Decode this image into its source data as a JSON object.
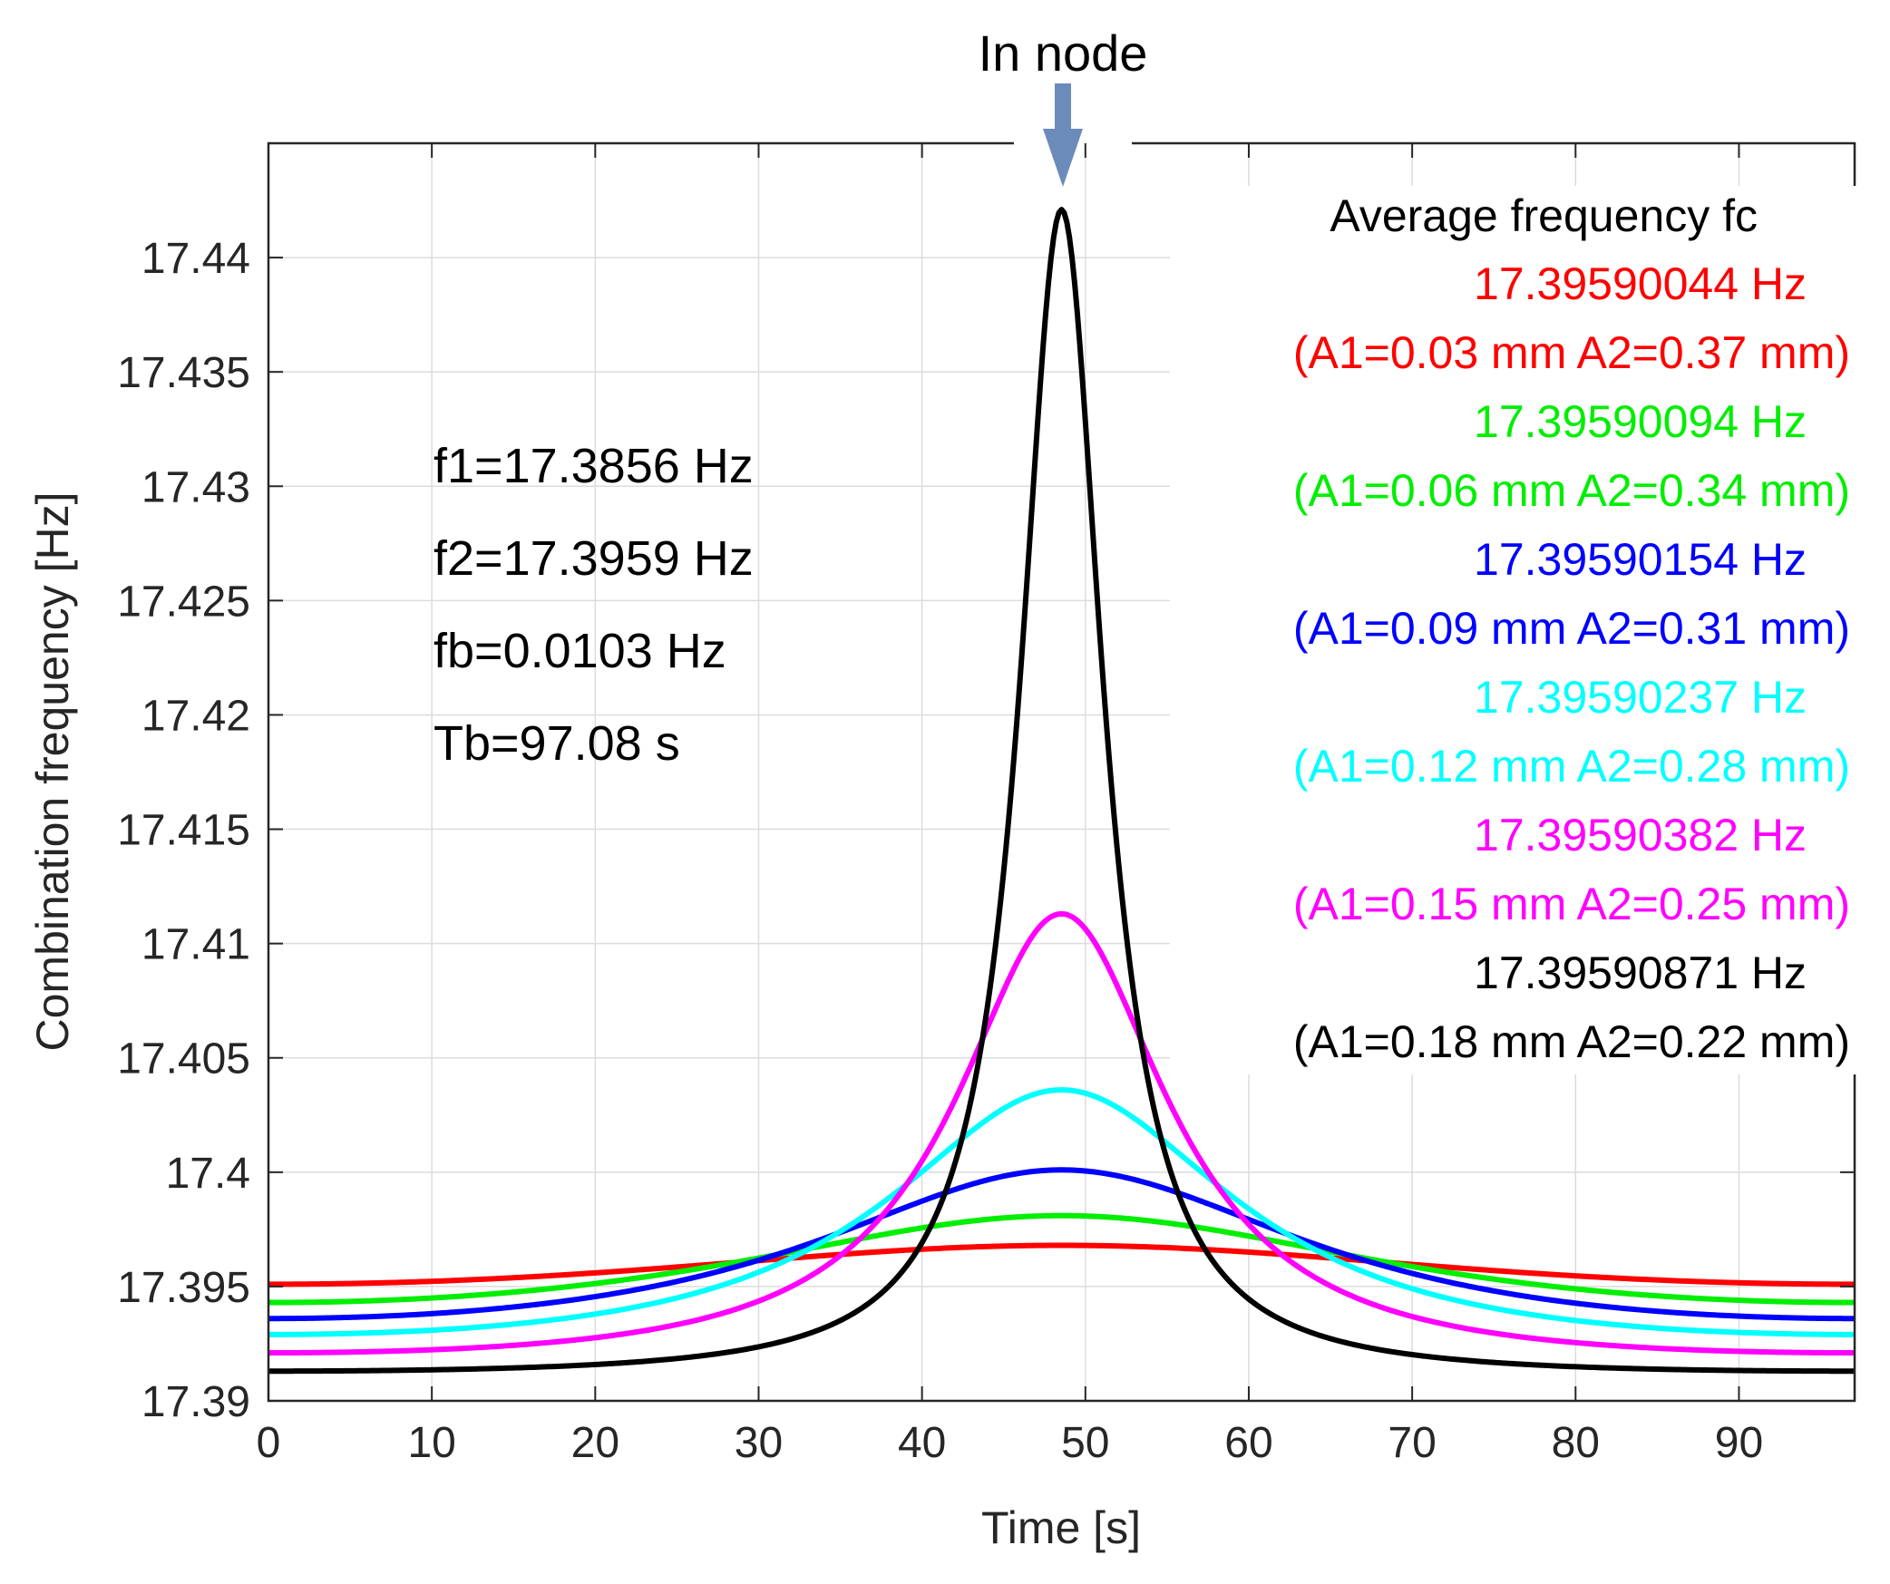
{
  "chart_data": {
    "type": "line",
    "title": "",
    "annotation_top": "In node",
    "xlabel": "Time [s]",
    "ylabel": "Combination frequency [Hz]",
    "xlim": [
      0,
      97.08
    ],
    "ylim": [
      17.39,
      17.445
    ],
    "xticks": [
      0,
      10,
      20,
      30,
      40,
      50,
      60,
      70,
      80,
      90
    ],
    "xtick_labels": [
      "0",
      "10",
      "20",
      "30",
      "40",
      "50",
      "60",
      "70",
      "80",
      "90"
    ],
    "yticks": [
      17.39,
      17.395,
      17.4,
      17.405,
      17.41,
      17.415,
      17.42,
      17.425,
      17.43,
      17.435,
      17.44
    ],
    "ytick_labels": [
      "17.39",
      "17.395",
      "17.4",
      "17.405",
      "17.41",
      "17.415",
      "17.42",
      "17.425",
      "17.43",
      "17.435",
      "17.44"
    ],
    "grid": true,
    "params": [
      "f1=17.3856 Hz",
      "f2=17.3959 Hz",
      "fb=0.0103 Hz",
      "Tb=97.08 s"
    ],
    "legend_title": "Average frequency fc",
    "legend_position": "top-right",
    "peak_time": 48.54,
    "series": [
      {
        "name": "red",
        "color": "#ff0000",
        "fc_label": "17.39590044 Hz",
        "amp_label": "(A1=0.03 mm A2=0.37 mm)",
        "A1": 0.03,
        "A2": 0.37,
        "start_value": 17.3951,
        "peak_value": 17.3968
      },
      {
        "name": "green",
        "color": "#00ee00",
        "fc_label": "17.39590094 Hz",
        "amp_label": "(A1=0.06 mm A2=0.34 mm)",
        "A1": 0.06,
        "A2": 0.34,
        "start_value": 17.3943,
        "peak_value": 17.3981
      },
      {
        "name": "blue",
        "color": "#0000ff",
        "fc_label": "17.39590154 Hz",
        "amp_label": "(A1=0.09 mm A2=0.31 mm)",
        "A1": 0.09,
        "A2": 0.31,
        "start_value": 17.3936,
        "peak_value": 17.4001
      },
      {
        "name": "cyan",
        "color": "#00ffff",
        "fc_label": "17.39590237 Hz",
        "amp_label": "(A1=0.12 mm A2=0.28 mm)",
        "A1": 0.12,
        "A2": 0.28,
        "start_value": 17.3929,
        "peak_value": 17.4036
      },
      {
        "name": "magenta",
        "color": "#ff00ff",
        "fc_label": "17.39590382 Hz",
        "amp_label": "(A1=0.15 mm A2=0.25 mm)",
        "A1": 0.15,
        "A2": 0.25,
        "start_value": 17.3921,
        "peak_value": 17.4113
      },
      {
        "name": "black",
        "color": "#000000",
        "fc_label": "17.39590871 Hz",
        "amp_label": "(A1=0.18 mm A2=0.22 mm)",
        "A1": 0.18,
        "A2": 0.22,
        "start_value": 17.3913,
        "peak_value": 17.4421
      }
    ]
  },
  "arrow_color": "#6b8cba"
}
